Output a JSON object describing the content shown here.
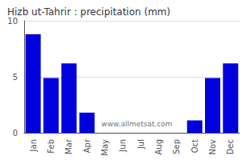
{
  "chart_data": {
    "type": "bar",
    "title": "Hizb ut-Tahrir : precipitation (mm)",
    "categories": [
      "Jan",
      "Feb",
      "Mar",
      "Apr",
      "May",
      "Jun",
      "Jul",
      "Aug",
      "Sep",
      "Oct",
      "Nov",
      "Dec"
    ],
    "values": [
      8.8,
      4.9,
      6.2,
      1.8,
      0,
      0,
      0,
      0,
      0,
      1.1,
      4.9,
      6.2
    ],
    "color": "#0000dd",
    "ylim": [
      0,
      10
    ],
    "yticks": [
      0,
      5,
      10
    ],
    "grid": true,
    "annotations": [
      "www.allmetsat.com"
    ]
  }
}
